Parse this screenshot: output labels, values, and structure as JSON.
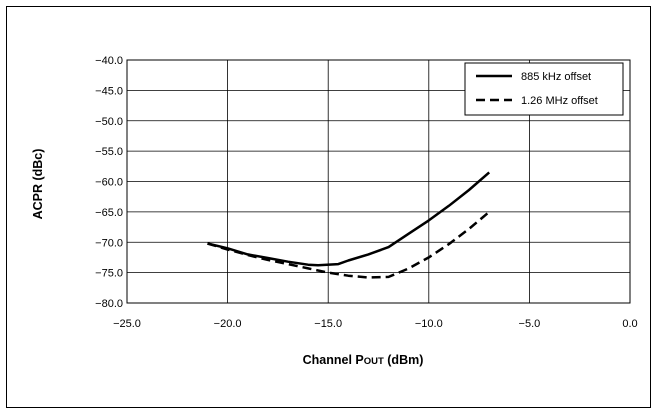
{
  "chart_data": {
    "type": "line",
    "title": "",
    "xlabel": "Channel P",
    "xlabel_subscript": "OUT",
    "xlabel_suffix": " (dBm)",
    "ylabel": "ACPR (dBc)",
    "xlim": [
      -25,
      0
    ],
    "ylim": [
      -80,
      -40
    ],
    "x_ticks": [
      -25,
      -20,
      -15,
      -10,
      -5,
      0
    ],
    "x_tick_labels": [
      "−25.0",
      "−20.0",
      "−15.0",
      "−10.0",
      "−5.0",
      "0.0"
    ],
    "y_ticks": [
      -40,
      -45,
      -50,
      -55,
      -60,
      -65,
      -70,
      -75,
      -80
    ],
    "y_tick_labels": [
      "−40.0",
      "−45.0",
      "−50.0",
      "−55.0",
      "−60.0",
      "−65.0",
      "−70.0",
      "−75.0",
      "−80.0"
    ],
    "grid": true,
    "legend_position": "top-right",
    "series": [
      {
        "name": "885 kHz offset",
        "style": "solid",
        "color": "#000000",
        "x": [
          -21,
          -20,
          -19,
          -18,
          -17,
          -16,
          -15.5,
          -14.5,
          -14,
          -13,
          -12,
          -11,
          -10,
          -9,
          -8,
          -7
        ],
        "y": [
          -70.2,
          -71.0,
          -72.0,
          -72.6,
          -73.2,
          -73.7,
          -73.8,
          -73.6,
          -73.0,
          -72.0,
          -70.8,
          -68.6,
          -66.4,
          -64.0,
          -61.4,
          -58.5
        ]
      },
      {
        "name": "1.26 MHz offset",
        "style": "dashed",
        "color": "#000000",
        "x": [
          -21,
          -20,
          -19,
          -18,
          -17,
          -16,
          -15,
          -14,
          -13,
          -12,
          -11,
          -10,
          -9,
          -8,
          -7
        ],
        "y": [
          -70.2,
          -71.2,
          -72.1,
          -72.9,
          -73.6,
          -74.3,
          -75.0,
          -75.5,
          -75.8,
          -75.7,
          -74.3,
          -72.5,
          -70.3,
          -67.8,
          -65.0
        ]
      }
    ]
  }
}
